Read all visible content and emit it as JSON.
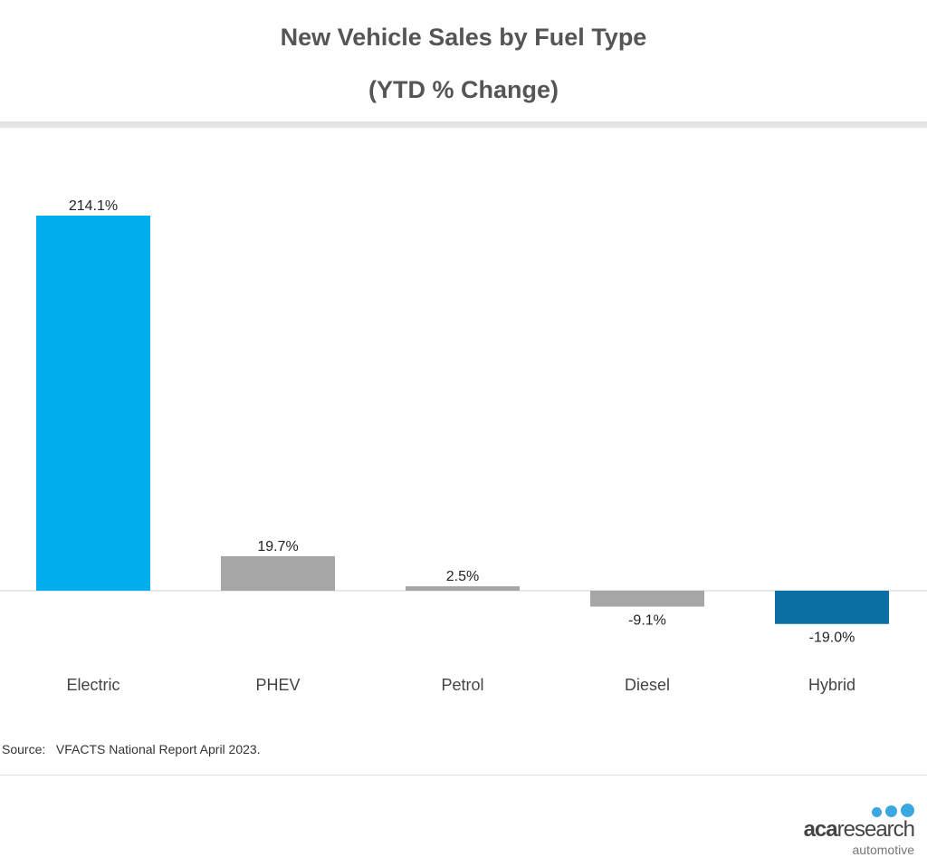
{
  "header": {
    "title_line1": "New Vehicle Sales by Fuel Type",
    "title_line2": "(YTD % Change)"
  },
  "chart_data": {
    "type": "bar",
    "title": "New Vehicle Sales by Fuel Type (YTD % Change)",
    "categories": [
      "Electric",
      "PHEV",
      "Petrol",
      "Diesel",
      "Hybrid"
    ],
    "values": [
      214.1,
      19.7,
      2.5,
      -9.1,
      -19.0
    ],
    "data_labels": [
      "214.1%",
      "19.7%",
      "2.5%",
      "-9.1%",
      "-19.0%"
    ],
    "bar_colors": [
      "#03aeef",
      "#a6a6a6",
      "#a6a6a6",
      "#a6a6a6",
      "#0b6fa4"
    ],
    "xlabel": "",
    "ylabel": "",
    "grid": false,
    "legend": "none"
  },
  "footer": {
    "source": "Source:   VFACTS National Report April 2023."
  },
  "logo": {
    "word_bold": "aca",
    "word_light": "research",
    "sub": "automotive",
    "dot_color": "#3aa8e0"
  }
}
